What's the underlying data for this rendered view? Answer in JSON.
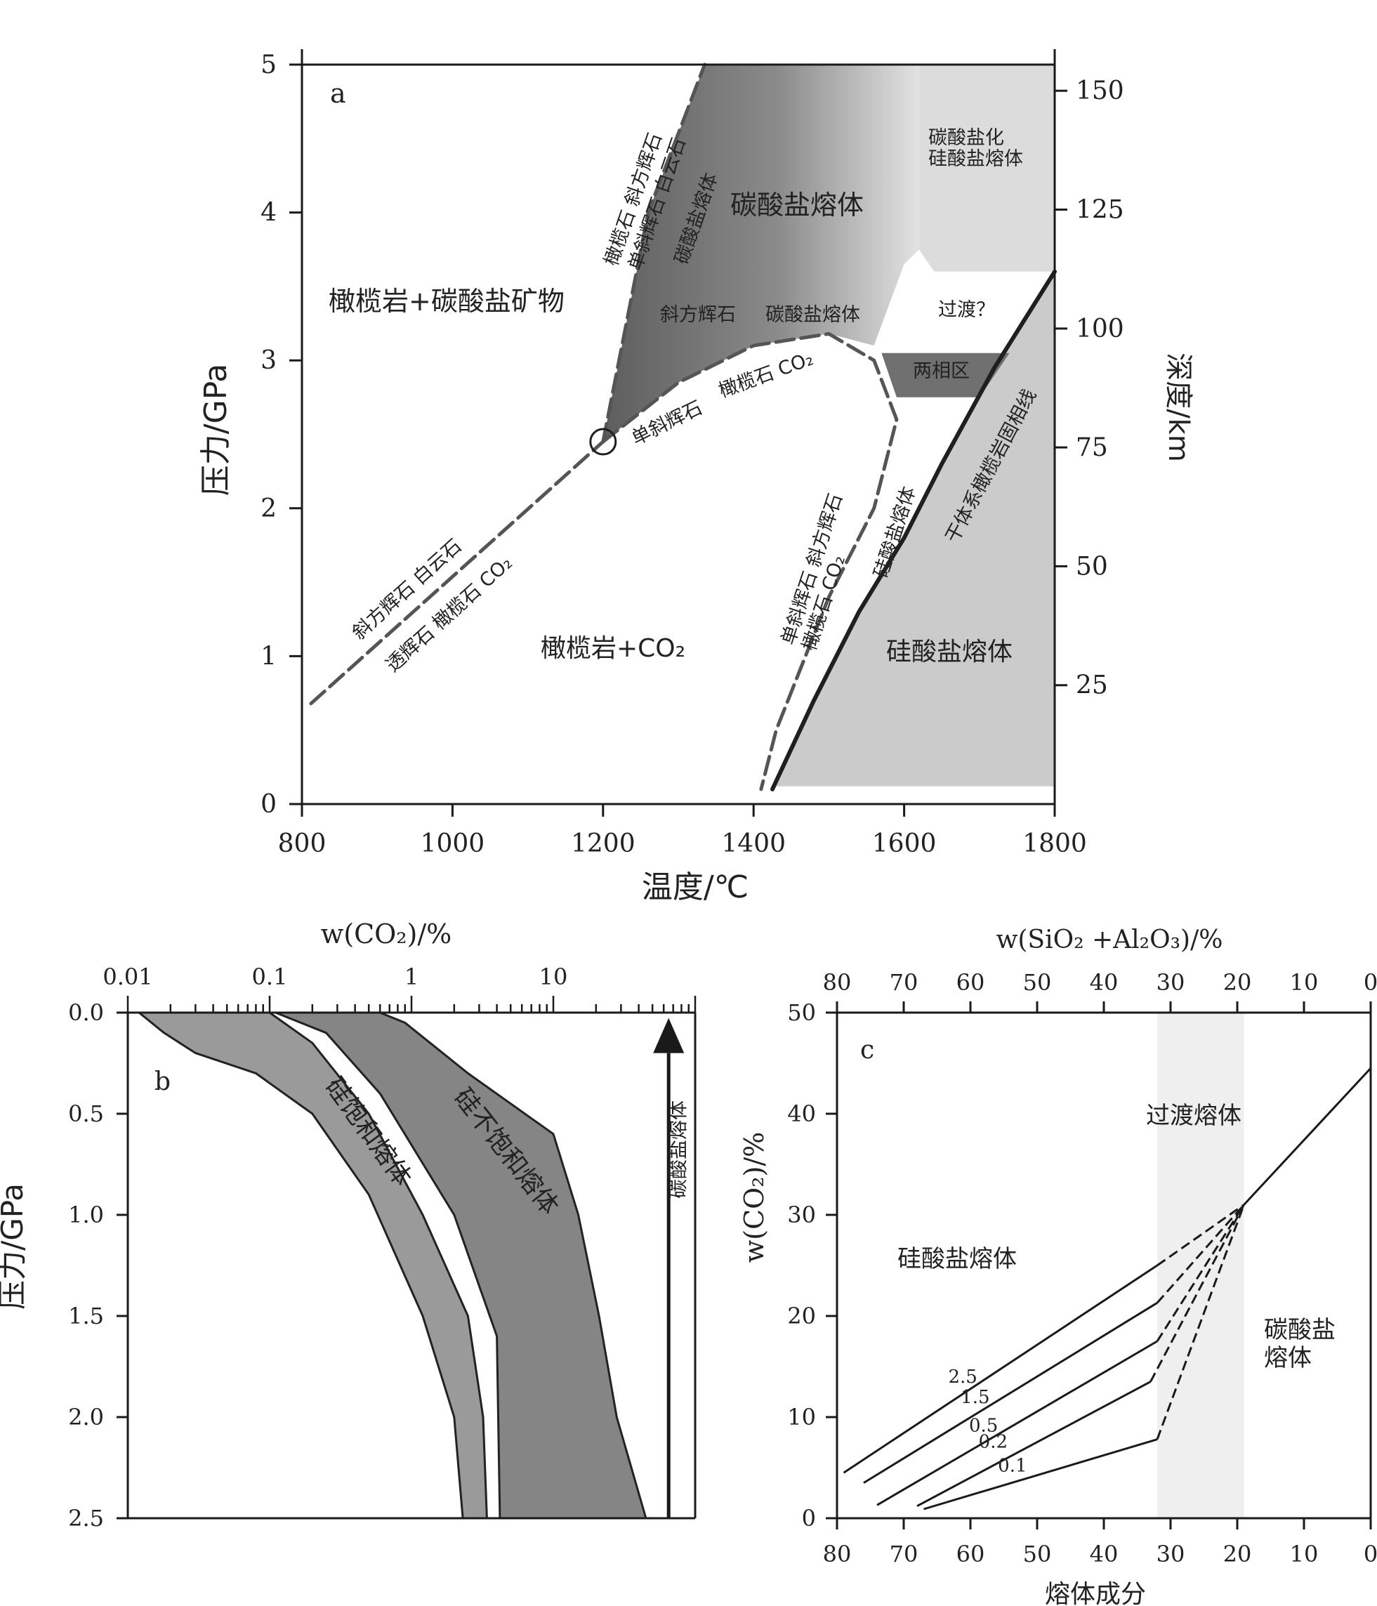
{
  "colors": {
    "axis": "#1a1a1a",
    "boundary": "#555555",
    "dark": "#6a6a6a",
    "mid": "#9a9a9a",
    "light": "#cfcfcf",
    "lighter": "#dcdcdc",
    "band": "#efefef"
  },
  "chart_data": [
    {
      "id": "a",
      "type": "line",
      "panel_label": "a",
      "xlabel": "温度/℃",
      "ylabel": "压力/GPa",
      "y2label": "深度/km",
      "xlim": [
        800,
        1800
      ],
      "ylim": [
        0,
        5
      ],
      "x_ticks": [
        "800",
        "1000",
        "1200",
        "1400",
        "1600",
        "1800"
      ],
      "y_ticks": [
        "0",
        "1",
        "2",
        "3",
        "4",
        "5"
      ],
      "y2_ticks": [
        "25",
        "50",
        "75",
        "100",
        "125",
        "150"
      ],
      "grid": false,
      "series": [
        {
          "style": "dashed",
          "points": [
            [
              812,
              0.68
            ],
            [
              1200,
              2.45
            ]
          ]
        },
        {
          "style": "dashed",
          "points": [
            [
              1200,
              2.45
            ],
            [
              1260,
              4.0
            ],
            [
              1335,
              5.0
            ]
          ]
        },
        {
          "style": "dashed",
          "points": [
            [
              1200,
              2.45
            ],
            [
              1300,
              2.85
            ],
            [
              1400,
              3.1
            ],
            [
              1500,
              3.18
            ],
            [
              1560,
              3.0
            ],
            [
              1590,
              2.6
            ],
            [
              1560,
              2.0
            ],
            [
              1500,
              1.4
            ],
            [
              1430,
              0.5
            ],
            [
              1410,
              0.1
            ]
          ]
        },
        {
          "style": "solid",
          "points": [
            [
              1425,
              0.1
            ],
            [
              1480,
              0.7
            ],
            [
              1540,
              1.3
            ],
            [
              1600,
              1.8
            ],
            [
              1650,
              2.3
            ],
            [
              1720,
              2.95
            ],
            [
              1800,
              3.6
            ]
          ]
        }
      ],
      "regions": [
        "橄榄岩+碳酸盐矿物",
        "碳酸盐熔体",
        "碳酸盐化",
        "硅酸盐熔体",
        "过渡？",
        "两相区",
        "橄榄岩+CO₂",
        "硅酸盐熔体"
      ],
      "reaction_labels": {
        "r1a": "橄榄石 斜方辉石",
        "r1b": "单斜辉石 白云石",
        "r1c": "碳酸盐熔体",
        "r2a": "斜方辉石 白云石",
        "r2b": "透辉石 橄榄石 CO₂",
        "r3a": "斜方辉石",
        "r3b": "碳酸盐熔体",
        "r3c": "单斜辉石",
        "r3d": "橄榄石 CO₂",
        "r4a": "单斜辉石 斜方辉石",
        "r4b": "橄榄石 CO₂",
        "r4c": "硅酸盐熔体",
        "solidus": "干体系橄榄岩固相线"
      }
    },
    {
      "id": "b",
      "type": "area",
      "panel_label": "b",
      "xlabel": "w(CO₂)/%",
      "ylabel": "压力/GPa",
      "x_scale": "log",
      "xlim": [
        0.01,
        100
      ],
      "ylim": [
        0,
        2.5
      ],
      "x_ticks": [
        "0.01",
        "0.1",
        "1",
        "10"
      ],
      "y_ticks": [
        "0.0",
        "0.5",
        "1.0",
        "1.5",
        "2.0",
        "2.5"
      ],
      "series": [
        {
          "name": "硅饱和熔体",
          "left": [
            [
              0.012,
              0
            ],
            [
              0.018,
              0.1
            ],
            [
              0.03,
              0.2
            ],
            [
              0.08,
              0.3
            ],
            [
              0.2,
              0.5
            ],
            [
              0.5,
              0.9
            ],
            [
              1.2,
              1.5
            ],
            [
              2.0,
              2.0
            ],
            [
              2.3,
              2.5
            ]
          ],
          "right": [
            [
              0.1,
              0
            ],
            [
              0.2,
              0.15
            ],
            [
              0.5,
              0.5
            ],
            [
              1.2,
              1.0
            ],
            [
              2.5,
              1.5
            ],
            [
              3.2,
              2.0
            ],
            [
              3.4,
              2.5
            ]
          ]
        },
        {
          "name": "硅不饱和熔体",
          "left": [
            [
              0.11,
              0
            ],
            [
              0.25,
              0.1
            ],
            [
              0.6,
              0.4
            ],
            [
              2.0,
              1.0
            ],
            [
              4.0,
              1.6
            ],
            [
              4.2,
              2.5
            ]
          ],
          "right": [
            [
              0.6,
              0
            ],
            [
              0.9,
              0.05
            ],
            [
              2.5,
              0.3
            ],
            [
              10,
              0.6
            ],
            [
              15,
              1.0
            ],
            [
              21,
              1.5
            ],
            [
              28,
              2.0
            ],
            [
              45,
              2.5
            ]
          ]
        }
      ],
      "arrow_label": "碳酸盐熔体",
      "arrow_x": 65
    },
    {
      "id": "c",
      "type": "line",
      "panel_label": "c",
      "xlabel": "熔体成分",
      "top_xlabel": "w(SiO₂ +Al₂O₃)/%",
      "ylabel": "w(CO₂)/%",
      "xlim": [
        80,
        0
      ],
      "ylim": [
        0,
        50
      ],
      "x_ticks": [
        "80",
        "70",
        "60",
        "50",
        "40",
        "30",
        "20",
        "10",
        "0"
      ],
      "y_ticks": [
        "0",
        "10",
        "20",
        "30",
        "40",
        "50"
      ],
      "band": [
        32,
        19
      ],
      "region_labels": [
        "过渡熔体",
        "硅酸盐熔体",
        "碳酸盐",
        "熔体"
      ],
      "series": [
        {
          "name": "2.5",
          "solid": [
            [
              79,
              4.5
            ],
            [
              32,
              25
            ]
          ],
          "dashed": [
            [
              32,
              25
            ],
            [
              19,
              31
            ]
          ]
        },
        {
          "name": "1.5",
          "solid": [
            [
              76,
              3.5
            ],
            [
              32,
              21.3
            ]
          ],
          "dashed": [
            [
              32,
              21.3
            ],
            [
              19,
              31
            ]
          ]
        },
        {
          "name": "0.5",
          "solid": [
            [
              74,
              1.3
            ],
            [
              32,
              17.5
            ]
          ],
          "dashed": [
            [
              32,
              17.5
            ],
            [
              19,
              31
            ]
          ]
        },
        {
          "name": "0.2",
          "solid": [
            [
              68,
              1.2
            ],
            [
              33,
              13.5
            ]
          ],
          "dashed": [
            [
              33,
              13.5
            ],
            [
              19,
              31
            ]
          ]
        },
        {
          "name": "0.1",
          "solid": [
            [
              67,
              0.9
            ],
            [
              32,
              7.8
            ]
          ],
          "dashed": [
            [
              32,
              7.8
            ],
            [
              19,
              31
            ]
          ]
        },
        {
          "name": "",
          "solid": [
            [
              19,
              31
            ],
            [
              0,
              44.5
            ]
          ]
        }
      ]
    }
  ]
}
